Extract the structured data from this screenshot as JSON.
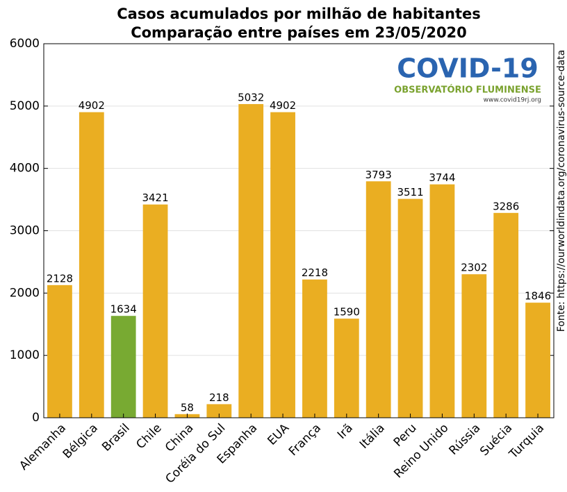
{
  "chart_data": {
    "type": "bar",
    "title": "Casos acumulados por milhão de habitantes",
    "subtitle": "Comparação entre países em 23/05/2020",
    "source": "Fonte: https://ourworldindata.org/coronavirus-source-data",
    "logo": {
      "title": "COVID-19",
      "subtitle": "OBSERVATÓRIO FLUMINENSE",
      "url": "www.covid19rj.org"
    },
    "categories": [
      "Alemanha",
      "Bélgica",
      "Brasil",
      "Chile",
      "China",
      "Coréia do Sul",
      "Espanha",
      "EUA",
      "França",
      "Irã",
      "Itália",
      "Peru",
      "Reino Unido",
      "Rússia",
      "Suécia",
      "Turquia"
    ],
    "values": [
      2128,
      4902,
      1634,
      3421,
      58,
      218,
      5032,
      4902,
      2218,
      1590,
      3793,
      3511,
      3744,
      2302,
      3286,
      1846
    ],
    "colors": [
      "#eaae22",
      "#eaae22",
      "#78aa32",
      "#eaae22",
      "#eaae22",
      "#eaae22",
      "#eaae22",
      "#eaae22",
      "#eaae22",
      "#eaae22",
      "#eaae22",
      "#eaae22",
      "#eaae22",
      "#eaae22",
      "#eaae22",
      "#eaae22"
    ],
    "ylim": [
      0,
      6000
    ],
    "yticks": [
      0,
      1000,
      2000,
      3000,
      4000,
      5000,
      6000
    ],
    "grid": true
  }
}
